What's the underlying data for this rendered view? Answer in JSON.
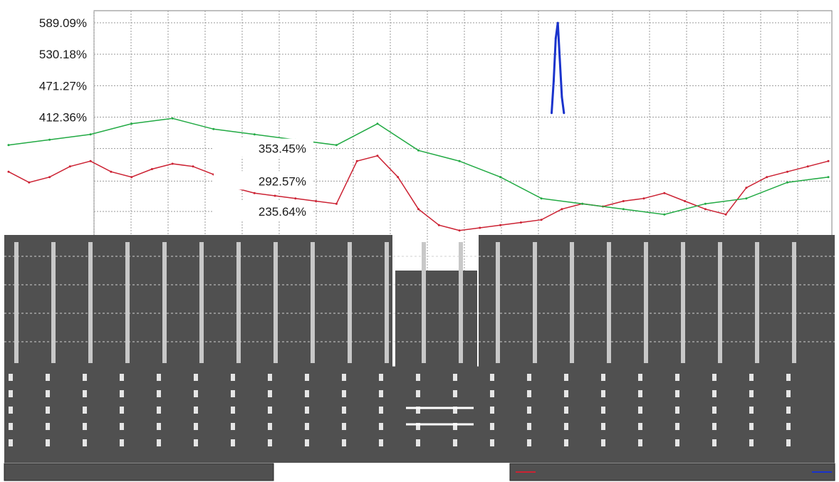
{
  "colors": {
    "plot_background": "#ffffff",
    "grid": "#9a9a9a",
    "dark_panel": "#505050",
    "series_primary": "#cc2233",
    "series_secondary": "#1a33cc",
    "series_tertiary": "#22aa44"
  },
  "chart_data": {
    "type": "line",
    "title": "",
    "xlabel": "",
    "ylabel": "",
    "ylim": [
      0,
      620
    ],
    "y_ticks": [
      "589.09%",
      "530.18%",
      "471.27%",
      "412.36%",
      "353.45%",
      "292.57%",
      "235.64%"
    ],
    "y_tick_values": [
      589.09,
      530.18,
      471.27,
      412.36,
      353.45,
      292.57,
      235.64
    ],
    "grid": true,
    "legend_position": "bottom",
    "series": [
      {
        "name": "",
        "x": [
          0,
          1,
          2,
          3,
          4,
          5,
          6,
          7,
          8,
          9,
          10,
          11,
          12,
          13,
          14,
          15,
          16,
          17,
          18,
          19,
          20,
          21,
          22,
          23,
          24,
          25,
          26,
          27,
          28,
          29,
          30,
          31,
          32,
          33,
          34,
          35,
          36,
          37,
          38,
          39,
          40
        ],
        "values": [
          310,
          290,
          300,
          320,
          330,
          310,
          300,
          315,
          325,
          320,
          305,
          280,
          270,
          265,
          260,
          255,
          250,
          330,
          340,
          300,
          240,
          210,
          200,
          205,
          210,
          215,
          220,
          240,
          250,
          245,
          255,
          260,
          270,
          255,
          240,
          230,
          280,
          300,
          310,
          320,
          330
        ]
      },
      {
        "name": "",
        "x": [
          26.5,
          26.6,
          26.7,
          26.8,
          26.9,
          27.0,
          27.1
        ],
        "values": [
          420,
          480,
          560,
          589,
          520,
          450,
          420
        ]
      },
      {
        "name": "",
        "x": [
          0,
          2,
          4,
          6,
          8,
          10,
          12,
          14,
          16,
          18,
          20,
          22,
          24,
          26,
          28,
          30,
          32,
          34,
          36,
          38,
          40
        ],
        "values": [
          360,
          370,
          380,
          400,
          410,
          390,
          380,
          370,
          360,
          400,
          350,
          330,
          300,
          260,
          250,
          240,
          230,
          250,
          260,
          290,
          300
        ]
      }
    ]
  }
}
